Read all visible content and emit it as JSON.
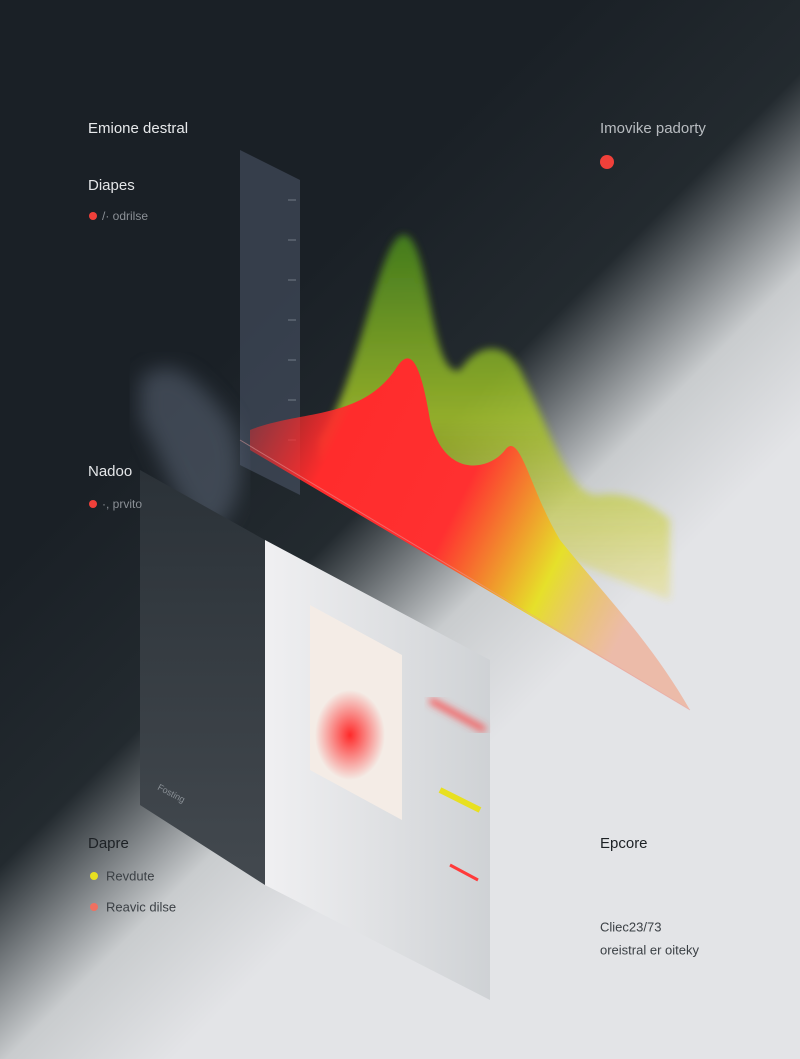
{
  "header": {
    "left": "Emione destral",
    "right": "Imovike padorty"
  },
  "sections": [
    {
      "title": "Diapes",
      "items": [
        "/· odrilse"
      ]
    },
    {
      "title": "Nadoo",
      "items": [
        "·, prvito"
      ]
    },
    {
      "title": "Dapre",
      "items": [
        "Revdute",
        "Reavic dilse"
      ]
    }
  ],
  "side": {
    "title": "Epcore",
    "line1": "Cliec23/73",
    "line2": "oreistral er oiteky"
  },
  "box_label": "Fosting"
}
